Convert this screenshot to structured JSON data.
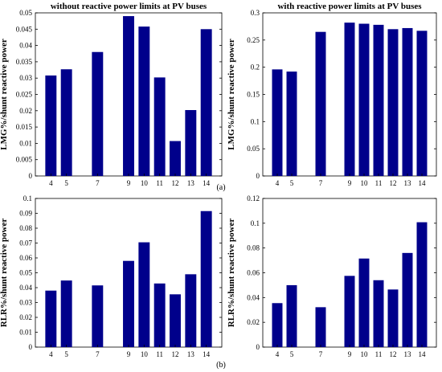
{
  "figure": {
    "subfig_a": "(a)",
    "subfig_b": "(b)"
  },
  "chart_data": [
    {
      "type": "bar",
      "title": "without reactive power limits at PV buses",
      "xlabel": "",
      "ylabel": "LMG%/shunt reactive power",
      "x": [
        4,
        5,
        7,
        9,
        10,
        11,
        12,
        13,
        14
      ],
      "values": [
        0.0308,
        0.0327,
        0.038,
        0.049,
        0.0458,
        0.0302,
        0.0107,
        0.0202,
        0.045
      ],
      "xlim": [
        3,
        15
      ],
      "ylim": [
        0,
        0.05
      ],
      "yticks": [
        "0",
        "0.005",
        "0.01",
        "0.015",
        "0.02",
        "0.025",
        "0.03",
        "0.035",
        "0.04",
        "0.045",
        "0.05"
      ],
      "xticks": [
        "4",
        "5",
        "7",
        "9",
        "10",
        "11",
        "12",
        "13",
        "14"
      ],
      "bar_color": "#00008B"
    },
    {
      "type": "bar",
      "title": "with reactive power limits at PV buses",
      "xlabel": "",
      "ylabel": "LMG%/shunt reactive power",
      "x": [
        4,
        5,
        7,
        9,
        10,
        11,
        12,
        13,
        14
      ],
      "values": [
        0.196,
        0.192,
        0.265,
        0.282,
        0.28,
        0.278,
        0.27,
        0.272,
        0.267
      ],
      "xlim": [
        3,
        15
      ],
      "ylim": [
        0,
        0.3
      ],
      "yticks": [
        "0",
        "0.05",
        "0.1",
        "0.15",
        "0.2",
        "0.25",
        "0.3"
      ],
      "xticks": [
        "4",
        "5",
        "7",
        "9",
        "10",
        "11",
        "12",
        "13",
        "14"
      ],
      "bar_color": "#00008B"
    },
    {
      "type": "bar",
      "title": "",
      "xlabel": "",
      "ylabel": "RLR%/shunt reactive power",
      "x": [
        4,
        5,
        7,
        9,
        10,
        11,
        12,
        13,
        14
      ],
      "values": [
        0.038,
        0.0448,
        0.0415,
        0.058,
        0.0705,
        0.0428,
        0.0355,
        0.049,
        0.0915
      ],
      "xlim": [
        3,
        15
      ],
      "ylim": [
        0,
        0.1
      ],
      "yticks": [
        "0",
        "0.01",
        "0.02",
        "0.03",
        "0.04",
        "0.05",
        "0.06",
        "0.07",
        "0.08",
        "0.09",
        "0.1"
      ],
      "xticks": [
        "4",
        "5",
        "7",
        "9",
        "10",
        "11",
        "12",
        "13",
        "14"
      ],
      "bar_color": "#00008B"
    },
    {
      "type": "bar",
      "title": "",
      "xlabel": "",
      "ylabel": "RLR%/shunt reactive power",
      "x": [
        4,
        5,
        7,
        9,
        10,
        11,
        12,
        13,
        14
      ],
      "values": [
        0.0355,
        0.05,
        0.0322,
        0.0575,
        0.0715,
        0.054,
        0.0465,
        0.076,
        0.1008
      ],
      "xlim": [
        3,
        15
      ],
      "ylim": [
        0,
        0.12
      ],
      "yticks": [
        "0",
        "0.02",
        "0.04",
        "0.06",
        "0.08",
        "0.1",
        "0.12"
      ],
      "xticks": [
        "4",
        "5",
        "7",
        "9",
        "10",
        "11",
        "12",
        "13",
        "14"
      ],
      "bar_color": "#00008B"
    }
  ]
}
